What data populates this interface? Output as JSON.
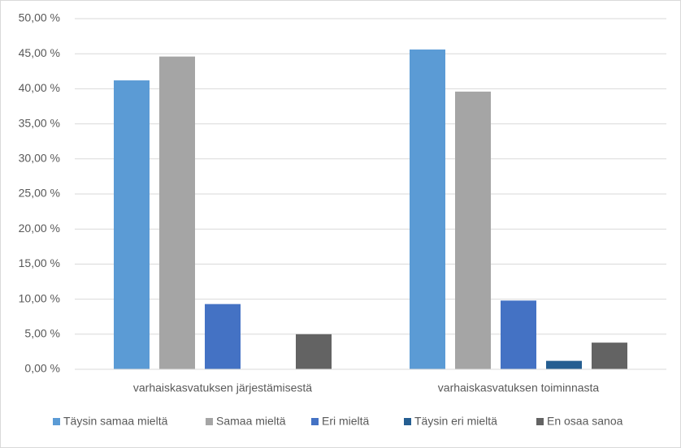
{
  "chart_data": {
    "type": "bar",
    "categories": [
      "varhaiskasvatuksen järjestämisestä",
      "varhaiskasvatuksen toiminnasta"
    ],
    "series": [
      {
        "name": "Täysin samaa mieltä",
        "color": "#5b9bd5",
        "values": [
          41.2,
          45.6
        ]
      },
      {
        "name": "Samaa mieltä",
        "color": "#a5a5a5",
        "values": [
          44.6,
          39.6
        ]
      },
      {
        "name": "Eri mieltä",
        "color": "#4472c4",
        "values": [
          9.3,
          9.8
        ]
      },
      {
        "name": "Täysin eri mieltä",
        "color": "#255e91",
        "values": [
          0,
          1.2
        ]
      },
      {
        "name": "En osaa sanoa",
        "color": "#636363",
        "values": [
          5.0,
          3.8
        ]
      }
    ],
    "ylim": [
      0,
      50
    ],
    "yticks": [
      {
        "value": 0,
        "label": "0,00 %"
      },
      {
        "value": 5,
        "label": "5,00 %"
      },
      {
        "value": 10,
        "label": "10,00 %"
      },
      {
        "value": 15,
        "label": "15,00 %"
      },
      {
        "value": 20,
        "label": "20,00 %"
      },
      {
        "value": 25,
        "label": "25,00 %"
      },
      {
        "value": 30,
        "label": "30,00 %"
      },
      {
        "value": 35,
        "label": "35,00 %"
      },
      {
        "value": 40,
        "label": "40,00 %"
      },
      {
        "value": 45,
        "label": "45,00 %"
      },
      {
        "value": 50,
        "label": "50,00 %"
      }
    ],
    "grid": true,
    "legend": "bottom"
  }
}
